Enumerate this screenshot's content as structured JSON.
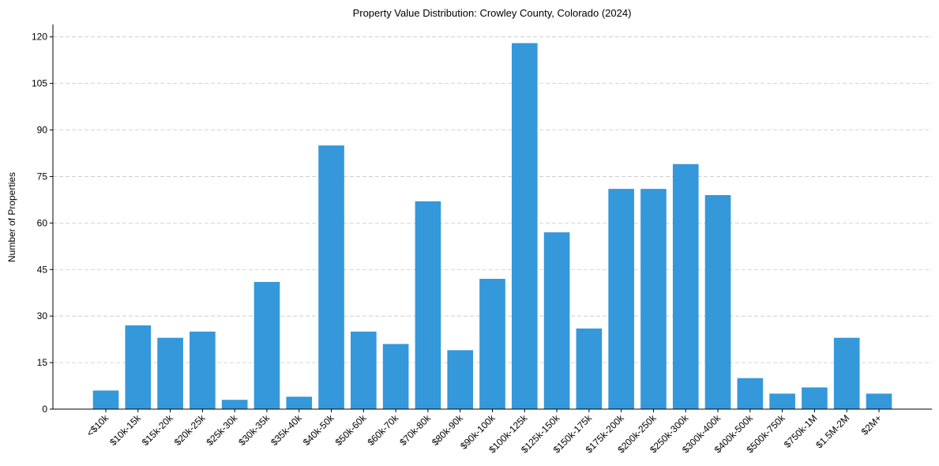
{
  "chart_data": {
    "type": "bar",
    "title": "Property Value Distribution: Crowley County, Colorado (2024)",
    "xlabel": "",
    "ylabel": "Number of Properties",
    "categories": [
      "<$10k",
      "$10k-15k",
      "$15k-20k",
      "$20k-25k",
      "$25k-30k",
      "$30k-35k",
      "$35k-40k",
      "$40k-50k",
      "$50k-60k",
      "$60k-70k",
      "$70k-80k",
      "$80k-90k",
      "$90k-100k",
      "$100k-125k",
      "$125k-150k",
      "$150k-175k",
      "$175k-200k",
      "$200k-250k",
      "$250k-300k",
      "$300k-400k",
      "$400k-500k",
      "$500k-750k",
      "$750k-1M",
      "$1.5M-2M",
      "$2M+"
    ],
    "values": [
      6,
      27,
      23,
      25,
      3,
      41,
      4,
      85,
      25,
      21,
      67,
      19,
      42,
      118,
      57,
      26,
      71,
      71,
      79,
      69,
      10,
      5,
      7,
      23,
      5
    ],
    "ylim": [
      0,
      124
    ],
    "yticks": [
      0,
      15,
      30,
      45,
      60,
      75,
      90,
      105,
      120
    ],
    "grid": "y",
    "bar_color": "#3498db"
  }
}
